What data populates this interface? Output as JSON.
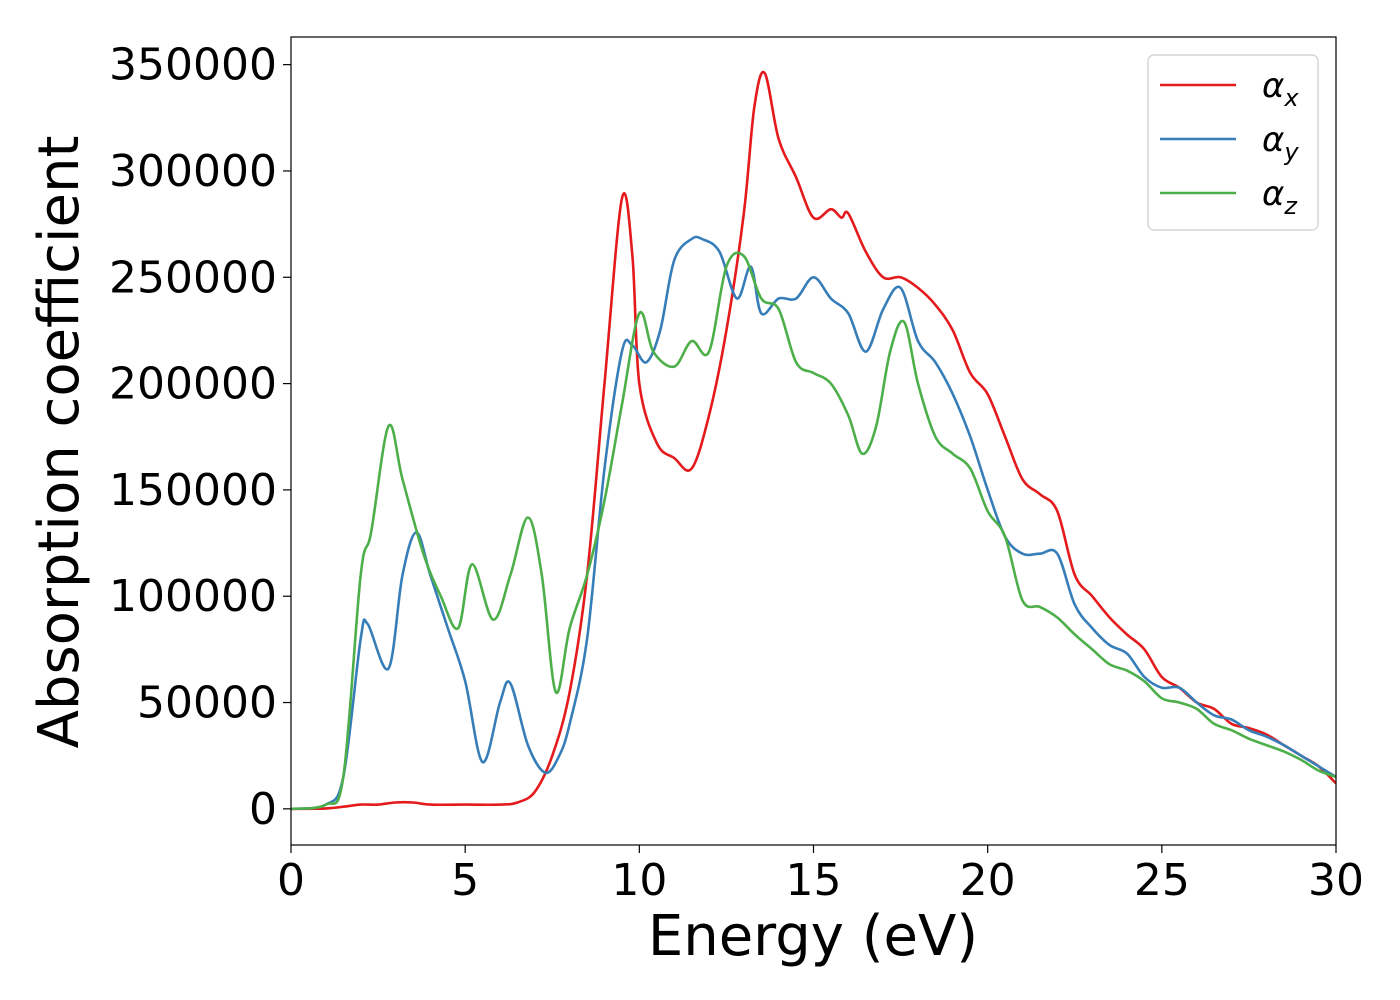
{
  "chart_data": {
    "type": "line",
    "title": "",
    "xlabel": "Energy (eV)",
    "ylabel": "Absorption coefficient",
    "xlim": [
      0,
      30
    ],
    "ylim": [
      -17000,
      363000
    ],
    "xticks": [
      0,
      5,
      10,
      15,
      20,
      25,
      30
    ],
    "yticks": [
      0,
      50000,
      100000,
      150000,
      200000,
      250000,
      300000,
      350000
    ],
    "grid": false,
    "legend": {
      "position": "top-right"
    },
    "series": [
      {
        "name": "α_x",
        "label_base": "α",
        "label_sub": "x",
        "color": "#e41a1c",
        "x": [
          0,
          1,
          1.5,
          2,
          2.5,
          3,
          3.5,
          4,
          5,
          6,
          6.5,
          7,
          7.5,
          8,
          8.5,
          9,
          9.5,
          9.8,
          10,
          10.5,
          11,
          11.5,
          12,
          12.5,
          13,
          13.3,
          13.6,
          14,
          14.5,
          15,
          15.5,
          15.8,
          16,
          16.5,
          17,
          17.5,
          18,
          18.5,
          19,
          19.5,
          20,
          20.5,
          21,
          21.5,
          22,
          22.5,
          23,
          23.5,
          24,
          24.5,
          25,
          25.5,
          26,
          26.5,
          27,
          27.5,
          28,
          28.5,
          29,
          29.5,
          30
        ],
        "y": [
          0,
          200,
          1000,
          2000,
          2000,
          3000,
          3000,
          2000,
          2000,
          2000,
          3000,
          8000,
          25000,
          55000,
          110000,
          200000,
          287000,
          260000,
          200000,
          172000,
          165000,
          160000,
          185000,
          225000,
          280000,
          330000,
          346000,
          315000,
          297000,
          278000,
          282000,
          278000,
          280000,
          262000,
          250000,
          250000,
          245000,
          237000,
          225000,
          205000,
          195000,
          175000,
          155000,
          148000,
          140000,
          110000,
          100000,
          90000,
          82000,
          75000,
          62000,
          57000,
          50000,
          47000,
          40000,
          38000,
          35000,
          30000,
          25000,
          20000,
          12000
        ]
      },
      {
        "name": "α_y",
        "label_base": "α",
        "label_sub": "y",
        "color": "#377eb8",
        "x": [
          0,
          1,
          1.5,
          2,
          2.2,
          2.8,
          3.2,
          3.6,
          4,
          4.5,
          5,
          5.5,
          6,
          6.3,
          6.8,
          7.3,
          7.7,
          8,
          8.5,
          9,
          9.5,
          9.8,
          10.2,
          10.6,
          11,
          11.5,
          11.8,
          12.3,
          12.8,
          13.2,
          13.5,
          14,
          14.5,
          15,
          15.5,
          16,
          16.5,
          17,
          17.5,
          18,
          18.5,
          19,
          19.5,
          20,
          20.5,
          21,
          21.5,
          22,
          22.5,
          23,
          23.5,
          24,
          24.5,
          25,
          25.5,
          26,
          26.5,
          27,
          27.5,
          28,
          28.5,
          29,
          29.5,
          30
        ],
        "y": [
          0,
          2000,
          15000,
          80000,
          87000,
          66000,
          110000,
          130000,
          110000,
          85000,
          60000,
          22000,
          50000,
          59000,
          30000,
          17000,
          25000,
          40000,
          80000,
          160000,
          215000,
          218000,
          210000,
          225000,
          258000,
          268000,
          268000,
          262000,
          240000,
          255000,
          233000,
          240000,
          240000,
          250000,
          240000,
          233000,
          215000,
          235000,
          245000,
          220000,
          210000,
          195000,
          175000,
          150000,
          128000,
          120000,
          120000,
          120000,
          96000,
          85000,
          77000,
          73000,
          62000,
          57000,
          57000,
          50000,
          44000,
          42000,
          37000,
          34000,
          30000,
          25000,
          20000,
          15000
        ]
      },
      {
        "name": "α_z",
        "label_base": "α",
        "label_sub": "z",
        "color": "#4daf4a",
        "x": [
          0,
          1,
          1.5,
          2,
          2.3,
          2.8,
          3.2,
          3.8,
          4.3,
          4.8,
          5.2,
          5.8,
          6.3,
          6.8,
          7.2,
          7.6,
          8,
          8.5,
          9,
          9.5,
          10,
          10.4,
          11,
          11.5,
          12,
          12.5,
          13,
          13.5,
          14,
          14.5,
          15,
          15.5,
          16,
          16.4,
          16.8,
          17.2,
          17.6,
          18,
          18.5,
          19,
          19.5,
          20,
          20.5,
          21,
          21.5,
          22,
          22.5,
          23,
          23.5,
          24,
          24.5,
          25,
          25.5,
          26,
          26.5,
          27,
          27.5,
          28,
          28.5,
          29,
          29.5,
          30
        ],
        "y": [
          0,
          2000,
          15000,
          110000,
          130000,
          180000,
          155000,
          120000,
          100000,
          85000,
          115000,
          89000,
          110000,
          137000,
          110000,
          55000,
          85000,
          110000,
          145000,
          190000,
          233000,
          215000,
          208000,
          220000,
          215000,
          255000,
          260000,
          240000,
          235000,
          210000,
          205000,
          200000,
          185000,
          167000,
          180000,
          215000,
          229000,
          200000,
          175000,
          167000,
          160000,
          140000,
          128000,
          98000,
          95000,
          90000,
          82000,
          75000,
          68000,
          65000,
          60000,
          52000,
          50000,
          47000,
          40000,
          37000,
          33000,
          30000,
          27000,
          23000,
          18000,
          15000
        ]
      }
    ]
  }
}
